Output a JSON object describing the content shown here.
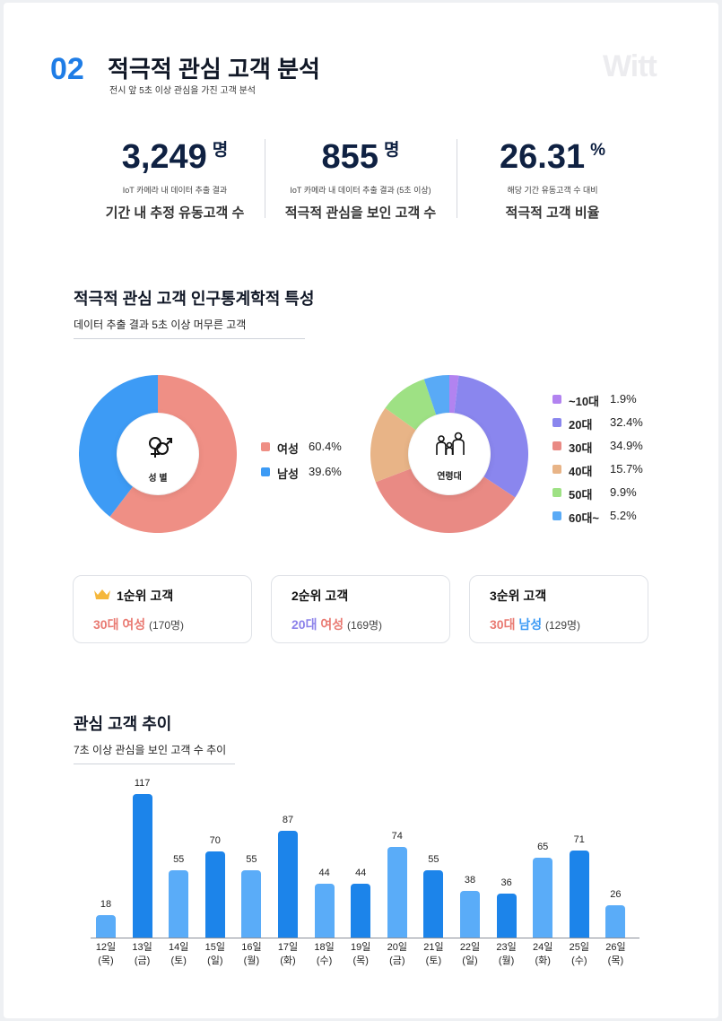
{
  "header": {
    "number": "02",
    "title": "적극적 관심 고객 분석",
    "subtitle": "전시 앞 5초 이상 관심을 가진 고객 분석",
    "brand": "Witt"
  },
  "kpis": [
    {
      "value": "3,249",
      "unit": "명",
      "note": "IoT 카메라 내 데이터 추출 결과",
      "label": "기간 내 추정 유동고객 수"
    },
    {
      "value": "855",
      "unit": "명",
      "note": "IoT 카메라 내 데이터 추출 결과 (5초 이상)",
      "label": "적극적 관심을 보인 고객 수"
    },
    {
      "value": "26.31",
      "unit": "%",
      "note": "해당 기간 유동고객 수 대비",
      "label": "적극적 고객 비율"
    }
  ],
  "demographics": {
    "title": "적극적 관심 고객 인구통계학적 특성",
    "subtitle": "데이터 추출 결과 5초 이상 머무른 고객",
    "gender_center_label": "성  별",
    "age_center_label": "연령대"
  },
  "chart_data": [
    {
      "type": "pie",
      "categories": [
        "여성",
        "남성"
      ],
      "values": [
        60.4,
        39.6
      ],
      "value_labels": [
        "60.4%",
        "39.6%"
      ],
      "colors": [
        "#ef8f85",
        "#3d9bf5"
      ],
      "legend": "right"
    },
    {
      "type": "pie",
      "categories": [
        "~10대",
        "20대",
        "30대",
        "40대",
        "50대",
        "60대~"
      ],
      "values": [
        1.9,
        32.4,
        34.9,
        15.7,
        9.9,
        5.2
      ],
      "value_labels": [
        "1.9%",
        "32.4%",
        "34.9%",
        "15.7%",
        "9.9%",
        "5.2%"
      ],
      "colors": [
        "#b283f0",
        "#8a86ee",
        "#e98a84",
        "#e8b487",
        "#9ee184",
        "#59aaf6"
      ],
      "legend": "right"
    },
    {
      "type": "bar",
      "title": "관심 고객 추이",
      "subtitle": "7초 이상 관심을 보인 고객 수 추이",
      "categories": [
        "12일",
        "13일",
        "14일",
        "15일",
        "16일",
        "17일",
        "18일",
        "19일",
        "20일",
        "21일",
        "22일",
        "23일",
        "24일",
        "25일",
        "26일"
      ],
      "weekdays": [
        "(목)",
        "(금)",
        "(토)",
        "(일)",
        "(월)",
        "(화)",
        "(수)",
        "(목)",
        "(금)",
        "(토)",
        "(일)",
        "(월)",
        "(화)",
        "(수)",
        "(목)"
      ],
      "values": [
        18,
        117,
        55,
        70,
        55,
        87,
        44,
        44,
        74,
        55,
        38,
        36,
        65,
        71,
        26
      ],
      "colors": {
        "light": "#5aacf8",
        "dark": "#1c84ea"
      },
      "ylim": [
        0,
        117
      ],
      "grid": false
    }
  ],
  "ranks": [
    {
      "title": "1순위 고객",
      "age": "30대",
      "gender": "여성",
      "count": "(170명)",
      "age_color": "#e97a72",
      "gender_color": "#e97a72",
      "icon": "crown-icon"
    },
    {
      "title": "2순위 고객",
      "age": "20대",
      "gender": "여성",
      "count": "(169명)",
      "age_color": "#8c82ea",
      "gender_color": "#e97a72"
    },
    {
      "title": "3순위 고객",
      "age": "30대",
      "gender": "남성",
      "count": "(129명)",
      "age_color": "#e97a72",
      "gender_color": "#3d9bf5"
    }
  ],
  "trend": {
    "title": "관심 고객 추이",
    "subtitle": "7초 이상 관심을 보인 고객 수 추이"
  }
}
